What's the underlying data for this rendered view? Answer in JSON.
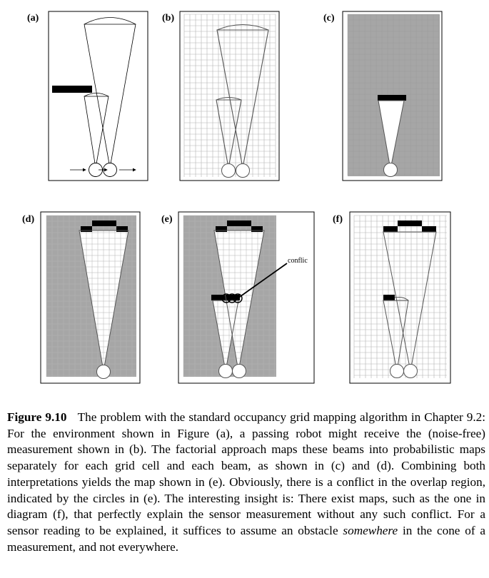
{
  "panels": {
    "a": {
      "label": "(a)"
    },
    "b": {
      "label": "(b)"
    },
    "c": {
      "label": "(c)"
    },
    "d": {
      "label": "(d)"
    },
    "e": {
      "label": "(e)",
      "annotation": "conflic"
    },
    "f": {
      "label": "(f)"
    }
  },
  "colors": {
    "unknown_cell": "#a6a6a6",
    "grid_line": "#b4b4b4",
    "occupied": "#000000",
    "background": "#ffffff"
  },
  "caption": {
    "figure_number": "Figure 9.10",
    "part1": "The problem with the standard occupancy grid mapping algorithm in Chapter 9.2: For the environment shown in Figure (a), a passing robot might receive the (noise-free) measurement shown in (b). The factorial approach maps these beams into probabilistic maps separately for each grid cell and each beam, as shown in (c) and (d). Combining both interpretations yields the map shown in (e). Obviously, there is a conflict in the overlap region, indicated by the circles in (e). The interesting insight is: There exist maps, such as the one in diagram (f), that perfectly explain the sensor measurement without any such conflict. For a sensor reading to be explained, it suffices to assume an obstacle",
    "emphasis": "somewhere",
    "part2": "in the cone of a measurement, and not everywhere."
  }
}
